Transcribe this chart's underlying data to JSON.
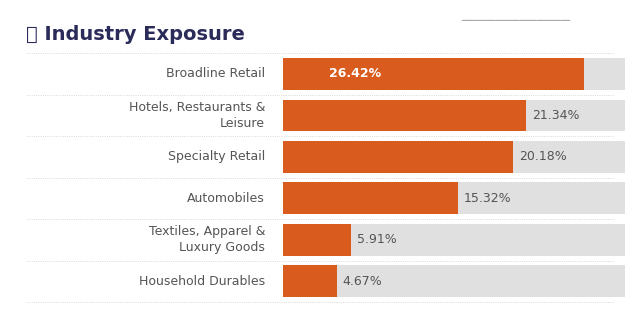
{
  "title": "Industry Exposure",
  "categories": [
    "Broadline Retail",
    "Hotels, Restaurants &\nLeisure",
    "Specialty Retail",
    "Automobiles",
    "Textiles, Apparel &\nLuxury Goods",
    "Household Durables"
  ],
  "values": [
    26.42,
    21.34,
    20.18,
    15.32,
    5.91,
    4.67
  ],
  "labels": [
    "26.42%",
    "21.34%",
    "20.18%",
    "15.32%",
    "5.91%",
    "4.67%"
  ],
  "bar_color": "#D95B1E",
  "bg_bar_color": "#E0E0E0",
  "bar_max": 30,
  "background_color": "#FFFFFF",
  "title_color": "#2B2B5A",
  "label_color": "#555555",
  "value_color_on_bar": "#FFFFFF",
  "value_color_off_bar": "#555555",
  "title_fontsize": 14,
  "label_fontsize": 9,
  "value_fontsize": 9,
  "divider_color": "#CCCCCC"
}
